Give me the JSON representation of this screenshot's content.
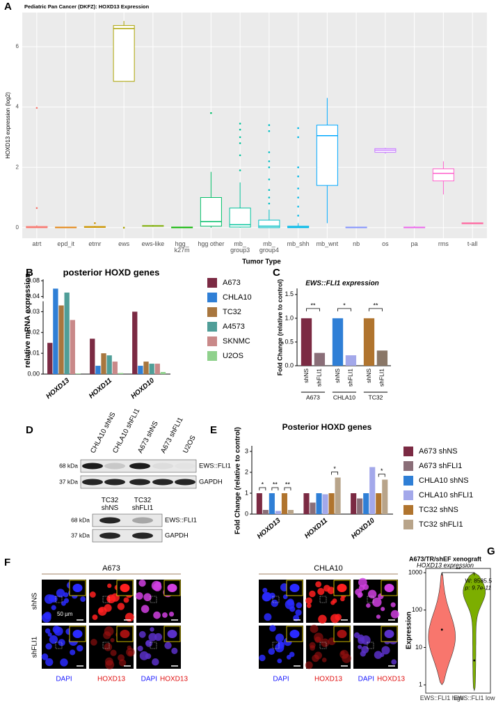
{
  "panel_labels": [
    "A",
    "B",
    "C",
    "D",
    "E",
    "F",
    "G"
  ],
  "chart_data": [
    {
      "type": "box",
      "title": "Pediatric Pan Cancer (DKFZ): HOXD13 Expression",
      "ylabel": "HOXD13 expression (log2)",
      "xlabel": "Tumor Type",
      "ylim": [
        -0.35,
        7.13
      ],
      "yticks": [
        0,
        2,
        4,
        6
      ],
      "grid": true,
      "categories": [
        "atrt",
        "epd_it",
        "etmr",
        "ews",
        "ews-like",
        "hgg_ k27m",
        "hgg other",
        "mb_ group3",
        "mb_ group4",
        "mb_shh",
        "mb_wnt",
        "nb",
        "os",
        "pa",
        "rms",
        "t-all"
      ],
      "boxes": [
        {
          "lower": 0,
          "q1": 0,
          "median": 0.01,
          "q3": 0.04,
          "upper": 0.08,
          "outliers": [
            0.65,
            3.97
          ],
          "color": "#f8766d"
        },
        {
          "lower": 0,
          "q1": 0,
          "median": 0.01,
          "q3": 0.02,
          "upper": 0.03,
          "outliers": [],
          "color": "#e68613"
        },
        {
          "lower": 0,
          "q1": 0.01,
          "median": 0.02,
          "q3": 0.04,
          "upper": 0.06,
          "outliers": [
            0.15
          ],
          "color": "#cd9600"
        },
        {
          "lower": 4.85,
          "q1": 4.85,
          "median": 6.6,
          "q3": 6.7,
          "upper": 6.85,
          "outliers": [
            0
          ],
          "color": "#aba300"
        },
        {
          "lower": 0.03,
          "q1": 0.05,
          "median": 0.06,
          "q3": 0.07,
          "upper": 0.09,
          "outliers": [],
          "color": "#7cae00"
        },
        {
          "lower": 0,
          "q1": 0,
          "median": 0.01,
          "q3": 0.02,
          "upper": 0.03,
          "outliers": [],
          "color": "#0cb702"
        },
        {
          "lower": 0,
          "q1": 0.05,
          "median": 0.2,
          "q3": 1.0,
          "upper": 1.85,
          "outliers": [
            3.8
          ],
          "color": "#00be67"
        },
        {
          "lower": 0,
          "q1": 0.02,
          "median": 0.1,
          "q3": 0.65,
          "upper": 1.5,
          "outliers": [
            1.9,
            2.4,
            2.8,
            3.0,
            3.25,
            3.45
          ],
          "color": "#00c19a"
        },
        {
          "lower": 0,
          "q1": 0,
          "median": 0.05,
          "q3": 0.25,
          "upper": 0.6,
          "outliers": [
            0.8,
            1.0,
            1.25,
            1.6,
            2.0,
            2.2,
            2.5,
            3.2,
            3.4
          ],
          "color": "#00bfc4"
        },
        {
          "lower": 0,
          "q1": 0,
          "median": 0.02,
          "q3": 0.05,
          "upper": 0.15,
          "outliers": [
            0.4,
            0.7,
            1.0,
            1.3,
            1.7,
            2.0,
            3.0,
            3.3
          ],
          "color": "#00b8e7"
        },
        {
          "lower": 0.15,
          "q1": 1.4,
          "median": 3.05,
          "q3": 3.4,
          "upper": 4.3,
          "outliers": [],
          "color": "#00a9ff"
        },
        {
          "lower": 0,
          "q1": 0,
          "median": 0.01,
          "q3": 0.02,
          "upper": 0.03,
          "outliers": [],
          "color": "#8494ff"
        },
        {
          "lower": 2.45,
          "q1": 2.5,
          "median": 2.57,
          "q3": 2.62,
          "upper": 2.65,
          "outliers": [],
          "color": "#c77cff"
        },
        {
          "lower": 0,
          "q1": 0,
          "median": 0.01,
          "q3": 0.02,
          "upper": 0.05,
          "outliers": [],
          "color": "#ed68ed"
        },
        {
          "lower": 1.1,
          "q1": 1.55,
          "median": 1.8,
          "q3": 1.95,
          "upper": 2.2,
          "outliers": [],
          "color": "#ff61cc"
        },
        {
          "lower": 0.12,
          "q1": 0.13,
          "median": 0.14,
          "q3": 0.16,
          "upper": 0.17,
          "outliers": [],
          "color": "#ff68a1"
        }
      ]
    },
    {
      "type": "bar",
      "title": "posterior HOXD genes",
      "ylabel": "relative mRNA expression",
      "categories": [
        "HOXD13",
        "HOXD11",
        "HOXD10"
      ],
      "series": [
        {
          "name": "A673",
          "color": "#7b2a43",
          "values": [
            0.015,
            0.017,
            0.03
          ]
        },
        {
          "name": "CHLA10",
          "color": "#2f7fd6",
          "values": [
            0.06,
            0.004,
            0.004
          ]
        },
        {
          "name": "TC32",
          "color": "#a8763e",
          "values": [
            0.033,
            0.01,
            0.006
          ]
        },
        {
          "name": "A4573",
          "color": "#4f9e98",
          "values": [
            0.05,
            0.009,
            0.005
          ]
        },
        {
          "name": "SKNMC",
          "color": "#c98989",
          "values": [
            0.026,
            0.006,
            0.005
          ]
        },
        {
          "name": "U2OS",
          "color": "#8fd18c",
          "values": [
            0.0003,
            0.0005,
            0.001
          ]
        }
      ],
      "ylim": [
        0,
        0.08
      ],
      "axis_break": 0.035,
      "yticks": [
        {
          "value": 0,
          "label": "0.00"
        },
        {
          "value": 0.01,
          "label": "0.01"
        },
        {
          "value": 0.02,
          "label": "0.02"
        },
        {
          "value": 0.03,
          "label": "0.03"
        },
        {
          "value": 0.04,
          "label": "0.04"
        },
        {
          "value": 0.08,
          "label": "0.08"
        }
      ]
    },
    {
      "type": "bar",
      "title": "EWS::FLI1 expression",
      "ylabel": "Fold Change (relative to control)",
      "categories": [
        "shNS",
        "shFLI1",
        "shNS",
        "shFLI1",
        "shNS",
        "shFLI1"
      ],
      "groups": [
        "A673",
        "CHLA10",
        "TC32"
      ],
      "values": [
        1.0,
        0.27,
        1.0,
        0.22,
        1.0,
        0.32
      ],
      "colors": [
        "#7b2a43",
        "#8a6e78",
        "#2f7fd6",
        "#a3a8ea",
        "#b0742e",
        "#8a7767"
      ],
      "significance": [
        "**",
        "*",
        "**"
      ],
      "ylim": [
        0,
        1.6
      ],
      "yticks": [
        {
          "value": 0,
          "label": "0.0"
        },
        {
          "value": 0.5,
          "label": "0.5"
        },
        {
          "value": 1,
          "label": "1.0"
        },
        {
          "value": 1.5,
          "label": "1.5"
        }
      ]
    },
    {
      "type": "bar",
      "title": "Posterior HOXD genes",
      "ylabel": "Fold Change (relative to control)",
      "categories": [
        "HOXD13",
        "HOXD11",
        "HOXD10"
      ],
      "series": [
        {
          "name": "A673 shNS",
          "color": "#7b2a43",
          "values": [
            1.0,
            1.0,
            1.0
          ]
        },
        {
          "name": "A673 shFLI1",
          "color": "#8a6e78",
          "values": [
            0.2,
            0.55,
            0.75
          ]
        },
        {
          "name": "CHLA10 shNS",
          "color": "#2f7fd6",
          "values": [
            1.0,
            1.0,
            1.0
          ]
        },
        {
          "name": "CHLA10 shFLI1",
          "color": "#a3a8ea",
          "values": [
            0.15,
            0.95,
            2.25
          ]
        },
        {
          "name": "TC32 shNS",
          "color": "#b0742e",
          "values": [
            1.0,
            1.0,
            1.0
          ]
        },
        {
          "name": "TC32 shFLI1",
          "color": "#b8a48a",
          "values": [
            0.2,
            1.75,
            1.65
          ]
        }
      ],
      "significance": [
        {
          "label": "*",
          "category": "HOXD13",
          "series": [
            "A673 shNS",
            "A673 shFLI1"
          ]
        },
        {
          "label": "**",
          "category": "HOXD13",
          "series": [
            "CHLA10 shNS",
            "CHLA10 shFLI1"
          ]
        },
        {
          "label": "**",
          "category": "HOXD13",
          "series": [
            "TC32 shNS",
            "TC32 shFLI1"
          ]
        },
        {
          "label": "*",
          "category": "HOXD11",
          "series": [
            "TC32 shNS",
            "TC32 shFLI1"
          ]
        },
        {
          "label": "*",
          "category": "HOXD10",
          "series": [
            "TC32 shNS",
            "TC32 shFLI1"
          ]
        }
      ],
      "ylim": [
        0,
        3.2
      ],
      "yticks": [
        0,
        1,
        2,
        3
      ]
    },
    {
      "type": "violin",
      "title": "A673/TR/shEF xenograft",
      "subtitle": "HOXD13 expression",
      "ylabel": "Expression",
      "log_scale": true,
      "ylim": [
        0.6,
        1300
      ],
      "yticks": [
        1,
        10,
        100,
        1000
      ],
      "categories": [
        "EWS::FLI1 high",
        "EWS::FLI1 low"
      ],
      "values": [
        30,
        4.5
      ],
      "ranges": [
        [
          1,
          1000
        ],
        [
          0.7,
          1000
        ]
      ],
      "colors": [
        "#f8766d",
        "#7cae00"
      ],
      "annotations": [
        "**",
        "W: 8585.5",
        "p: 9.7e-11"
      ]
    }
  ],
  "blot": {
    "top": {
      "lanes": [
        "CHLA10 shNS",
        "CHLA10 shFLI1",
        "A673 shNS",
        "A673 shFLI1",
        "U2OS"
      ],
      "markers": [
        "68 kDa",
        "37 kDa"
      ],
      "bands": [
        "EWS::FLI1",
        "GAPDH"
      ]
    },
    "bottom": {
      "lanes": [
        "TC32 shNS",
        "TC32 shFLI1"
      ],
      "markers": [
        "68 kDa",
        "37 kDa"
      ],
      "bands": [
        "EWS::FLI1",
        "GAPDH"
      ]
    }
  },
  "microscopy": {
    "cell_lines": [
      "A673",
      "CHLA10"
    ],
    "conditions": [
      "shNS",
      "shFLI1"
    ],
    "channels": [
      "DAPI",
      "HOXD13"
    ],
    "scale_bar": "50 µm"
  }
}
